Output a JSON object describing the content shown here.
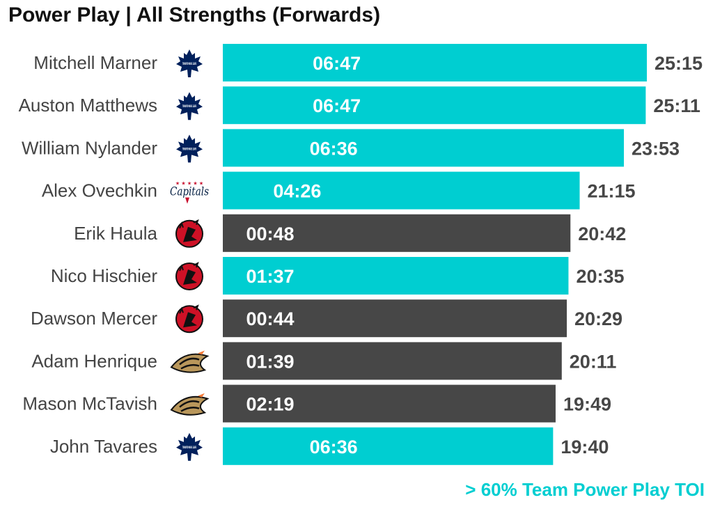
{
  "chart_data": {
    "type": "bar",
    "orientation": "horizontal",
    "title": "Power Play | All Strengths (Forwards)",
    "footnote": "> 60% Team Power Play TOI",
    "colors": {
      "highlight": "#00CED1",
      "normal": "#474747",
      "label_dark": "#474747",
      "name": "#444444",
      "title": "#111111"
    },
    "value_unit": "minutes",
    "xlim": [
      0,
      25.25
    ],
    "grid": false,
    "legend": "none",
    "bars": [
      {
        "name": "Mitchell Marner",
        "team": "toronto-maple-leafs",
        "total_label": "25:15",
        "total": 25.25,
        "pp_label": "06:47",
        "pp": 6.783,
        "highlight": true
      },
      {
        "name": "Auston Matthews",
        "team": "toronto-maple-leafs",
        "total_label": "25:11",
        "total": 25.183,
        "pp_label": "06:47",
        "pp": 6.783,
        "highlight": true
      },
      {
        "name": "William Nylander",
        "team": "toronto-maple-leafs",
        "total_label": "23:53",
        "total": 23.883,
        "pp_label": "06:36",
        "pp": 6.6,
        "highlight": true
      },
      {
        "name": "Alex Ovechkin",
        "team": "washington-capitals",
        "total_label": "21:15",
        "total": 21.25,
        "pp_label": "04:26",
        "pp": 4.433,
        "highlight": true
      },
      {
        "name": "Erik Haula",
        "team": "new-jersey-devils",
        "total_label": "20:42",
        "total": 20.7,
        "pp_label": "00:48",
        "pp": 0.8,
        "highlight": false
      },
      {
        "name": "Nico Hischier",
        "team": "new-jersey-devils",
        "total_label": "20:35",
        "total": 20.583,
        "pp_label": "01:37",
        "pp": 1.617,
        "highlight": true
      },
      {
        "name": "Dawson Mercer",
        "team": "new-jersey-devils",
        "total_label": "20:29",
        "total": 20.483,
        "pp_label": "00:44",
        "pp": 0.733,
        "highlight": false
      },
      {
        "name": "Adam Henrique",
        "team": "anaheim-ducks",
        "total_label": "20:11",
        "total": 20.183,
        "pp_label": "01:39",
        "pp": 1.65,
        "highlight": false
      },
      {
        "name": "Mason McTavish",
        "team": "anaheim-ducks",
        "total_label": "19:49",
        "total": 19.817,
        "pp_label": "02:19",
        "pp": 2.317,
        "highlight": false
      },
      {
        "name": "John Tavares",
        "team": "toronto-maple-leafs",
        "total_label": "19:40",
        "total": 19.667,
        "pp_label": "06:36",
        "pp": 6.6,
        "highlight": true
      }
    ],
    "logo_text": {
      "toronto-maple-leafs": "TORONTO MAPLE LEAFS",
      "washington-capitals": "Capitals"
    }
  }
}
